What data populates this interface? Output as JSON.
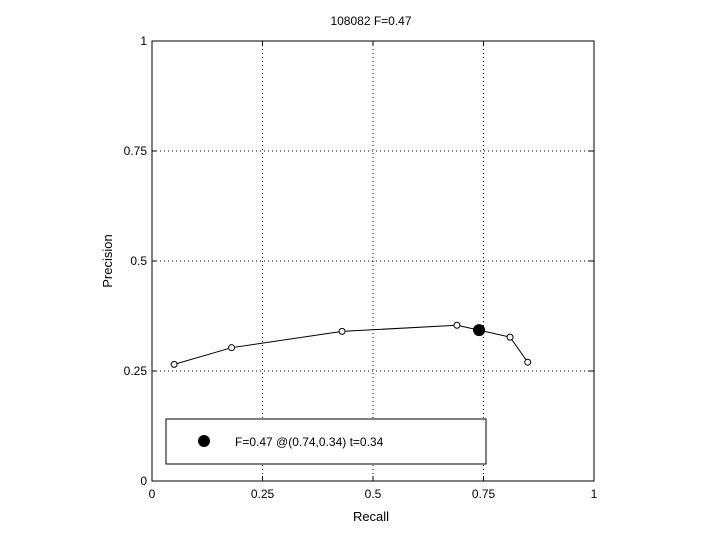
{
  "chart_data": {
    "type": "line",
    "title": "108082 F=0.47",
    "xlabel": "Recall",
    "ylabel": "Precision",
    "xlim": [
      0,
      1
    ],
    "ylim": [
      0,
      1
    ],
    "grid": true,
    "x_ticks": [
      0,
      0.25,
      0.5,
      0.75,
      1
    ],
    "y_ticks": [
      0,
      0.25,
      0.5,
      0.75,
      1
    ],
    "x_tick_labels": [
      "0",
      "0.25",
      "0.5",
      "0.75",
      "1"
    ],
    "y_tick_labels": [
      "0",
      "0.25",
      "0.5",
      "0.75",
      "1"
    ],
    "series": [
      {
        "x": [
          0.05,
          0.18,
          0.43,
          0.69,
          0.74,
          0.81,
          0.85
        ],
        "y": [
          0.265,
          0.303,
          0.34,
          0.354,
          0.343,
          0.327,
          0.27
        ]
      }
    ],
    "highlight_point": {
      "x": 0.74,
      "y": 0.343
    },
    "legend": {
      "placement": "bottom-left",
      "text": "F=0.47 @(0.74,0.34) t=0.34"
    }
  }
}
